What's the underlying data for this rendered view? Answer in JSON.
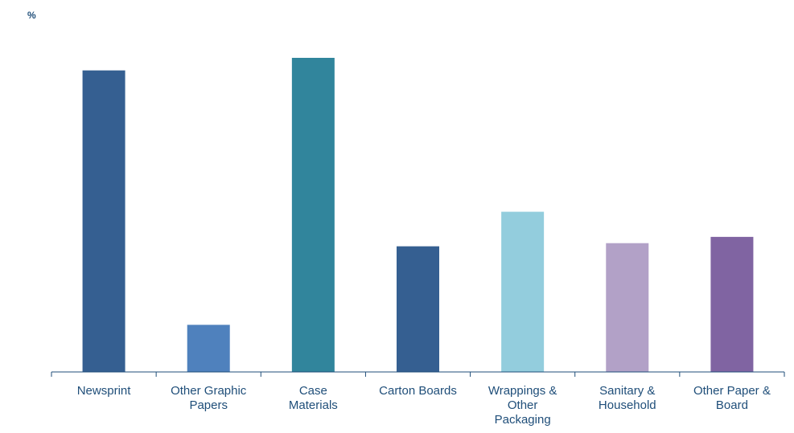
{
  "chart_data": {
    "type": "bar",
    "title": "",
    "ylabel": "%",
    "xlabel": "",
    "ylim": [
      0,
      100
    ],
    "grid": false,
    "legend": "none",
    "categories": [
      [
        "Newsprint"
      ],
      [
        "Other Graphic",
        "Papers"
      ],
      [
        "Case",
        "Materials"
      ],
      [
        "Carton Boards"
      ],
      [
        "Wrappings &",
        "Other",
        "Packaging"
      ],
      [
        "Sanitary &",
        "Household"
      ],
      [
        "Other Paper &",
        "Board"
      ]
    ],
    "values": [
      96,
      15,
      100,
      40,
      51,
      41,
      43
    ],
    "colors": [
      "#355F91",
      "#4F81BD",
      "#31859C",
      "#355F91",
      "#93CDDD",
      "#B2A1C7",
      "#8064A2"
    ],
    "axis_color": "#1F4E79"
  }
}
